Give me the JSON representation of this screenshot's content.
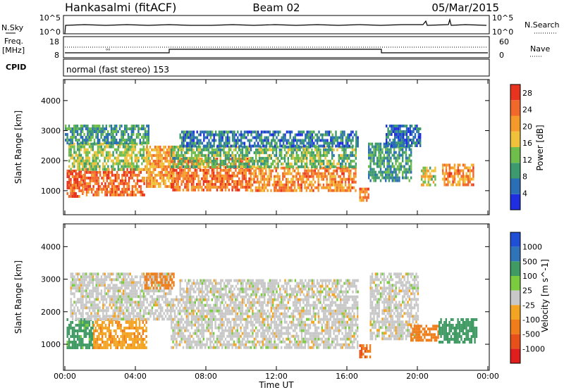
{
  "header": {
    "station": "Hankasalmi (fitACF)",
    "beam": "Beam 02",
    "date": "05/Mar/2015"
  },
  "nsky_panel": {
    "left_label": "N.Sky",
    "right_label": "N.Search",
    "left_ticks": [
      "10^5",
      "10^0"
    ],
    "right_ticks": [
      "10^5",
      "10^0"
    ]
  },
  "freq_panel": {
    "left_label_1": "Freq.",
    "left_label_2": "[MHz]",
    "right_label": "Nave",
    "left_ticks": [
      "18",
      "8"
    ],
    "right_ticks": [
      "60",
      "0"
    ]
  },
  "cpid_panel": {
    "label": "CPID",
    "program": "normal (fast stereo) 153"
  },
  "x_axis": {
    "title": "Time UT",
    "ticks": [
      "00:00",
      "04:00",
      "08:00",
      "12:00",
      "16:00",
      "20:00",
      "00:00"
    ]
  },
  "colors": {
    "power_scale": [
      "#1f2ee0",
      "#2a6fb5",
      "#3c9a6e",
      "#6fbd4a",
      "#f0c23a",
      "#f59a2a",
      "#f2672a",
      "#e8331f"
    ],
    "velocity_scale": [
      "#1f4fd6",
      "#2f74b8",
      "#3f9a63",
      "#7acb3e",
      "#c8c8c8",
      "#f3a423",
      "#ef7d1a",
      "#e8501a",
      "#e01e1e"
    ]
  },
  "chart_data": [
    {
      "type": "heatmap",
      "title": "",
      "xlabel": "",
      "ylabel": "Slant Range [km]",
      "x_ticks": [
        "00:00",
        "04:00",
        "08:00",
        "12:00",
        "16:00",
        "20:00",
        "00:00"
      ],
      "y_ticks": [
        1000,
        2000,
        3000,
        4000
      ],
      "xlim_hours": [
        0,
        24
      ],
      "ylim_km": [
        200,
        4700
      ],
      "colorbar": {
        "label": "Power [dB]",
        "ticks": [
          4,
          8,
          12,
          16,
          20,
          24,
          28
        ],
        "range": [
          0,
          30
        ]
      },
      "regions": [
        {
          "t0": 0.1,
          "t1": 1.0,
          "r0": 800,
          "r1": 1700,
          "value": 26
        },
        {
          "t0": 1.0,
          "t1": 4.5,
          "r0": 900,
          "r1": 1750,
          "value": 24
        },
        {
          "t0": 0.2,
          "t1": 4.8,
          "r0": 1700,
          "r1": 2600,
          "value": 14
        },
        {
          "t0": 0.0,
          "t1": 4.8,
          "r0": 2600,
          "r1": 3200,
          "value": 9
        },
        {
          "t0": 4.6,
          "t1": 6.2,
          "r0": 1100,
          "r1": 2500,
          "value": 20
        },
        {
          "t0": 6.0,
          "t1": 10.5,
          "r0": 1000,
          "r1": 2100,
          "value": 24
        },
        {
          "t0": 10.5,
          "t1": 16.5,
          "r0": 1000,
          "r1": 1800,
          "value": 22
        },
        {
          "t0": 6.0,
          "t1": 16.5,
          "r0": 1800,
          "r1": 2500,
          "value": 12
        },
        {
          "t0": 6.5,
          "t1": 16.6,
          "r0": 2500,
          "r1": 3000,
          "value": 7
        },
        {
          "t0": 16.7,
          "t1": 17.2,
          "r0": 700,
          "r1": 1100,
          "value": 22
        },
        {
          "t0": 17.2,
          "t1": 19.6,
          "r0": 1300,
          "r1": 2600,
          "value": 9
        },
        {
          "t0": 18.2,
          "t1": 20.2,
          "r0": 2500,
          "r1": 3200,
          "value": 6
        },
        {
          "t0": 20.2,
          "t1": 21.0,
          "r0": 1200,
          "r1": 1800,
          "value": 16
        },
        {
          "t0": 21.4,
          "t1": 23.2,
          "r0": 1200,
          "r1": 1900,
          "value": 22
        }
      ]
    },
    {
      "type": "heatmap",
      "title": "",
      "xlabel": "Time UT",
      "ylabel": "Slant Range [km]",
      "x_ticks": [
        "00:00",
        "04:00",
        "08:00",
        "12:00",
        "16:00",
        "20:00",
        "00:00"
      ],
      "y_ticks": [
        1000,
        2000,
        3000,
        4000
      ],
      "xlim_hours": [
        0,
        24
      ],
      "ylim_km": [
        200,
        4700
      ],
      "colorbar": {
        "label": "Velocity [m s^-1]",
        "ticks": [
          1000,
          500,
          100,
          25,
          -25,
          -100,
          -500,
          -1000
        ]
      },
      "regions": [
        {
          "t0": 0.1,
          "t1": 1.6,
          "r0": 900,
          "r1": 1800,
          "value": 150
        },
        {
          "t0": 1.6,
          "t1": 4.6,
          "r0": 900,
          "r1": 1800,
          "value": -80
        },
        {
          "t0": 0.3,
          "t1": 6.0,
          "r0": 1800,
          "r1": 3200,
          "value": 0
        },
        {
          "t0": 4.5,
          "t1": 6.2,
          "r0": 2700,
          "r1": 3200,
          "value": -150
        },
        {
          "t0": 6.0,
          "t1": 16.6,
          "r0": 900,
          "r1": 2500,
          "value": 0
        },
        {
          "t0": 6.5,
          "t1": 16.6,
          "r0": 2500,
          "r1": 3000,
          "value": 0
        },
        {
          "t0": 16.7,
          "t1": 17.3,
          "r0": 600,
          "r1": 1000,
          "value": -450
        },
        {
          "t0": 17.3,
          "t1": 20.0,
          "r0": 1200,
          "r1": 3200,
          "value": 0
        },
        {
          "t0": 19.6,
          "t1": 21.2,
          "r0": 1100,
          "r1": 1600,
          "value": -300
        },
        {
          "t0": 21.2,
          "t1": 23.4,
          "r0": 1100,
          "r1": 1800,
          "value": 300
        }
      ]
    }
  ]
}
